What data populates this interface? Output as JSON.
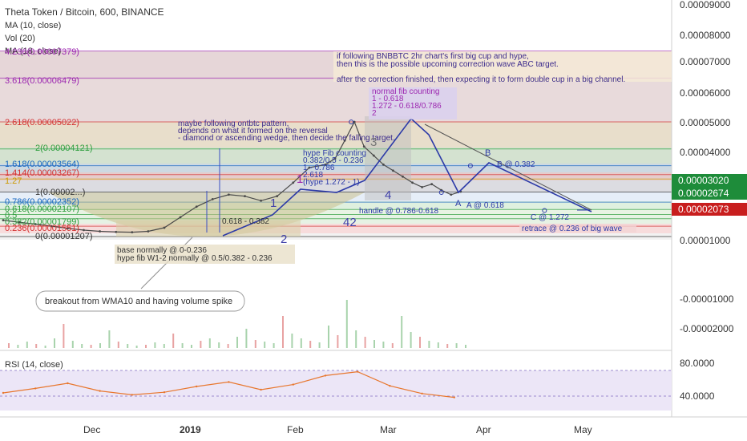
{
  "header": {
    "symbol": "Theta Token / Bitcoin, 600, BINANCE",
    "indicators": [
      "MA (10, close)",
      "Vol (20)",
      "MA (18, close)"
    ],
    "rsi_label": "RSI (14, close)"
  },
  "price_axis": {
    "ticks": [
      "0.00009000",
      "0.00008000",
      "0.00007000",
      "0.00006000",
      "0.00005000",
      "0.00004000",
      "0.00001000",
      "-0.00001000",
      "-0.00002000"
    ],
    "badges": [
      {
        "text": "0.00003020",
        "color": "#1e8c3a"
      },
      {
        "text": "0.00002674",
        "color": "#1e8c3a"
      },
      {
        "text": "0.00002073",
        "color": "#c81e1e"
      }
    ],
    "rsi_ticks": [
      "80.0000",
      "40.0000"
    ]
  },
  "time_axis": {
    "labels": [
      "Dec",
      "2019",
      "Feb",
      "Mar",
      "Apr",
      "May"
    ]
  },
  "fib_levels": [
    {
      "label": "4.236(0.00007379)",
      "value": 7.379,
      "color": "#9c27b0"
    },
    {
      "label": "3.618(0.00006479)",
      "value": 6.479,
      "color": "#9c27b0"
    },
    {
      "label": "2.618(0.00005022)",
      "value": 5.022,
      "color": "#d32f2f"
    },
    {
      "label": "2(0.00004121)",
      "value": 4.121,
      "color": "#2e9e3e"
    },
    {
      "label": "1.618(0.00003564)",
      "value": 3.564,
      "color": "#1565c0"
    },
    {
      "label": "1.414(0.00003267)",
      "value": 3.267,
      "color": "#d32f2f"
    },
    {
      "label": "1.27",
      "value": 3.12,
      "color": "#cc9900"
    },
    {
      "label": "1(0.00002...)",
      "value": 2.688,
      "color": "#333333"
    },
    {
      "label": "0.786(0.00002352)",
      "value": 2.352,
      "color": "#1565c0"
    },
    {
      "label": "0.618(0.00002107)",
      "value": 2.107,
      "color": "#2e9e3e"
    },
    {
      "label": "0.5",
      "value": 1.94,
      "color": "#2e9e3e"
    },
    {
      "label": "0.382(0.00001799)",
      "value": 1.799,
      "color": "#2e9e3e"
    },
    {
      "label": "0.236(0.00001551)",
      "value": 1.551,
      "color": "#d32f2f"
    },
    {
      "label": "0(0.00001207)",
      "value": 1.207,
      "color": "#333333"
    }
  ],
  "annotations": {
    "bnbbtc_note": [
      "if following BNBBTC 2hr chart's first big cup and hype,",
      "then this is the possible upcoming correction wave ABC target.",
      "",
      "after the correction finished, then expecting it to form double cup in a big channel."
    ],
    "normal_fib": [
      "normal fib counting",
      "1 - 0.618",
      "1.272 - 0.618/0.786",
      "2"
    ],
    "ontbtc": [
      "maybe following ontbtc pattern,",
      "depends on what it formed on the reversal",
      "- diamond or ascending wedge, then decide the falling target."
    ],
    "hype_fib": [
      "hype Fib counting",
      "0.382/0.5 - 0.236",
      "1 - 0.786",
      "2.618",
      "(hype 1.272 - 1)"
    ],
    "base": [
      "base normally @ 0-0.236",
      "hype fib W1-2 normally @ 0.5/0.382 - 0.236"
    ],
    "breakout": "breakout from WMA10 and having volume spike",
    "fib_small": "0.618 - 0.382",
    "handle": "handle @ 0.786-0.618",
    "a_target": "A @ 0.618",
    "b_target": "B @ 0.382",
    "c_target": "C @ 1.272",
    "retrace": "retrace @ 0.236 of big wave",
    "wave_labels": [
      "1",
      "2",
      "3",
      "4",
      "42",
      "1",
      "A",
      "B"
    ]
  },
  "chart_data": {
    "type": "line",
    "title": "Theta Token / Bitcoin, 600, BINANCE",
    "y_unit": "1e-5 BTC",
    "x_time_labels": [
      "Dec",
      "2019",
      "Feb",
      "Mar",
      "Apr",
      "May"
    ],
    "series": [
      {
        "name": "Price",
        "x": [
          0,
          5,
          10,
          15,
          20,
          25,
          30,
          35,
          40,
          45,
          50,
          55,
          60,
          65,
          70,
          75,
          80,
          85,
          90,
          95,
          100,
          103,
          106,
          109,
          112,
          115,
          118,
          121,
          124,
          127,
          130,
          133,
          136,
          139,
          142
        ],
        "values": [
          1.75,
          1.68,
          1.62,
          1.55,
          1.48,
          1.42,
          1.38,
          1.36,
          1.35,
          1.38,
          1.5,
          1.85,
          2.2,
          2.45,
          2.6,
          2.55,
          2.4,
          2.55,
          3.0,
          3.5,
          3.6,
          3.8,
          4.4,
          5.02,
          4.2,
          3.9,
          3.6,
          3.4,
          3.2,
          3.0,
          2.85,
          2.95,
          2.75,
          2.6,
          2.7
        ]
      },
      {
        "name": "RSI (14, close)",
        "x": [
          0,
          10,
          20,
          30,
          40,
          50,
          60,
          70,
          80,
          90,
          100,
          110,
          120,
          130,
          140
        ],
        "values": [
          45,
          52,
          60,
          48,
          42,
          46,
          55,
          62,
          50,
          58,
          72,
          78,
          56,
          44,
          38
        ]
      }
    ],
    "projection_path": {
      "x": [
        108,
        136,
        145,
        168
      ],
      "values": [
        5.02,
        2.674,
        3.56,
        2.073
      ],
      "labels": [
        "",
        "A",
        "B",
        "C"
      ]
    },
    "ylim": [
      -2.5,
      9.5
    ]
  }
}
